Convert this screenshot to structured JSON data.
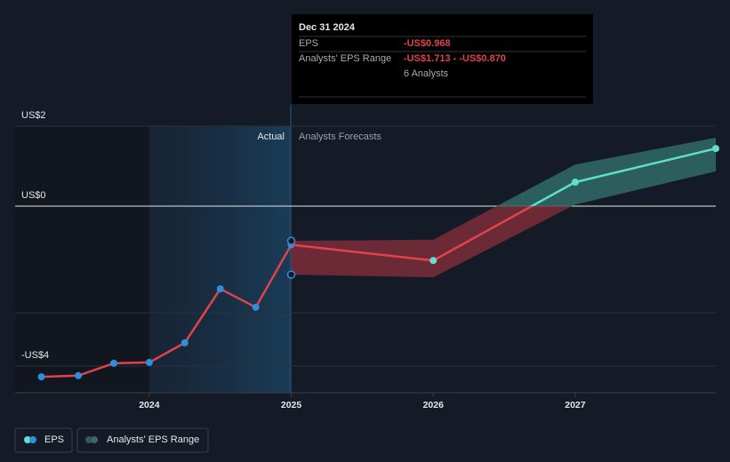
{
  "chart_data": {
    "type": "line",
    "xlim": [
      2023.055,
      2027.99
    ],
    "xticks": [
      2024,
      2025,
      2026,
      2027
    ],
    "ylim": [
      -4.667,
      2
    ],
    "yticks": [
      {
        "value": 2,
        "label": "US$2"
      },
      {
        "value": 0,
        "label": "US$0"
      },
      {
        "value": -4,
        "label": "-US$4"
      }
    ],
    "grid": true,
    "divider_labels": [
      "Actual",
      "Analysts Forecasts"
    ],
    "series": [
      {
        "name": "EPS",
        "color": "#e0434b",
        "x": [
          2023.24,
          2023.5,
          2023.75,
          2024,
          2024.25,
          2024.5,
          2024.75,
          2025
        ],
        "values": [
          -4.27,
          -4.24,
          -3.93,
          -3.91,
          -3.42,
          -2.07,
          -2.53,
          -0.968
        ]
      },
      {
        "color": "#e0434b",
        "positive_color": "#5ee0cc",
        "x": [
          2025,
          2026,
          2027,
          2027.99
        ],
        "values": [
          -0.968,
          -1.36,
          0.6,
          1.44
        ]
      }
    ],
    "range": {
      "name": "Analysts' EPS Range",
      "x": [
        2025,
        2026,
        2027,
        2027.99
      ],
      "low": [
        -1.713,
        -1.78,
        0.04,
        0.87
      ],
      "high": [
        -0.87,
        -0.84,
        1.04,
        1.71
      ]
    },
    "tooltip": {
      "date": "Dec 31 2024",
      "eps_label": "EPS",
      "eps_value": "-US$0.968",
      "range_label": "Analysts' EPS Range",
      "range_value": "-US$1.713 - -US$0.870",
      "analysts": "6 Analysts"
    },
    "legend": [
      "EPS",
      "Analysts' EPS Range"
    ]
  }
}
